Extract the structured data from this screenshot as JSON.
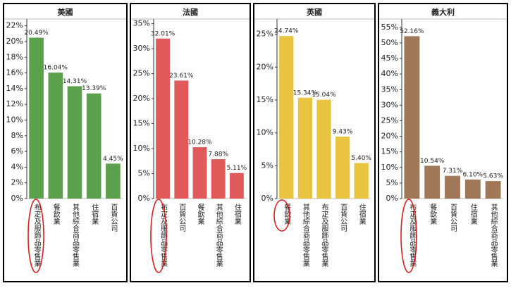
{
  "chart_data": [
    {
      "type": "bar",
      "title": "美國",
      "color": "#5ba04c",
      "categories": [
        "布疋及服飾品零售業",
        "餐飲業",
        "其他綜合商品零售業",
        "住宿業",
        "百貨公司"
      ],
      "values": [
        20.49,
        16.04,
        14.31,
        13.39,
        4.45
      ],
      "value_labels": [
        "20.49%",
        "16.04%",
        "14.31%",
        "13.39%",
        "4.45%"
      ],
      "ylim": [
        0,
        22.6
      ],
      "yticks": [
        {
          "value": 0,
          "label": "0%"
        },
        {
          "value": 2,
          "label": "2%"
        },
        {
          "value": 4,
          "label": "4%"
        },
        {
          "value": 6,
          "label": "6%"
        },
        {
          "value": 8,
          "label": "8%"
        },
        {
          "value": 10,
          "label": "10%"
        },
        {
          "value": 12,
          "label": "12%"
        },
        {
          "value": 14,
          "label": "14%"
        },
        {
          "value": 16,
          "label": "16%"
        },
        {
          "value": 18,
          "label": "18%"
        },
        {
          "value": 20,
          "label": "20%"
        },
        {
          "value": 22,
          "label": "22%"
        }
      ]
    },
    {
      "type": "bar",
      "title": "法國",
      "color": "#e05a5a",
      "categories": [
        "布疋及服飾品零售業",
        "百貨公司",
        "餐飲業",
        "其他綜合商品零售業",
        "住宿業"
      ],
      "values": [
        32.01,
        23.61,
        10.28,
        7.88,
        5.11
      ],
      "value_labels": [
        "32.01%",
        "23.61%",
        "10.28%",
        "7.88%",
        "5.11%"
      ],
      "ylim": [
        0,
        35.5
      ],
      "yticks": [
        {
          "value": 0,
          "label": "0%"
        },
        {
          "value": 5,
          "label": "5%"
        },
        {
          "value": 10,
          "label": "10%"
        },
        {
          "value": 15,
          "label": "15%"
        },
        {
          "value": 20,
          "label": "20%"
        },
        {
          "value": 25,
          "label": "25%"
        },
        {
          "value": 30,
          "label": "30%"
        },
        {
          "value": 35,
          "label": "35%"
        }
      ]
    },
    {
      "type": "bar",
      "title": "英國",
      "color": "#e8c440",
      "categories": [
        "餐飲業",
        "其他綜合商品零售業",
        "布疋及服飾品零售業",
        "百貨公司",
        "住宿業"
      ],
      "values": [
        24.74,
        15.34,
        15.04,
        9.43,
        5.4
      ],
      "value_labels": [
        "24.74%",
        "15.34%",
        "15.04%",
        "9.43%",
        "5.40%"
      ],
      "ylim": [
        0,
        27
      ],
      "yticks": [
        {
          "value": 0,
          "label": "0%"
        },
        {
          "value": 5,
          "label": "5%"
        },
        {
          "value": 10,
          "label": "10%"
        },
        {
          "value": 15,
          "label": "15%"
        },
        {
          "value": 20,
          "label": "20%"
        },
        {
          "value": 25,
          "label": "25%"
        }
      ]
    },
    {
      "type": "bar",
      "title": "義大利",
      "color": "#a07858",
      "categories": [
        "布疋及服飾品零售業",
        "餐飲業",
        "百貨公司",
        "住宿業",
        "其他綜合商品零售業"
      ],
      "values": [
        52.16,
        10.54,
        7.31,
        6.1,
        5.63
      ],
      "value_labels": [
        "52.16%",
        "10.54%",
        "7.31%",
        "6.10%",
        "5.63%"
      ],
      "ylim": [
        0,
        57
      ],
      "yticks": [
        {
          "value": 0,
          "label": "0%"
        },
        {
          "value": 5,
          "label": "5%"
        },
        {
          "value": 10,
          "label": "10%"
        },
        {
          "value": 15,
          "label": "15%"
        },
        {
          "value": 20,
          "label": "20%"
        },
        {
          "value": 25,
          "label": "25%"
        },
        {
          "value": 30,
          "label": "30%"
        },
        {
          "value": 35,
          "label": "35%"
        },
        {
          "value": 40,
          "label": "40%"
        },
        {
          "value": 45,
          "label": "45%"
        },
        {
          "value": 50,
          "label": "50%"
        },
        {
          "value": 55,
          "label": "55%"
        }
      ]
    }
  ]
}
